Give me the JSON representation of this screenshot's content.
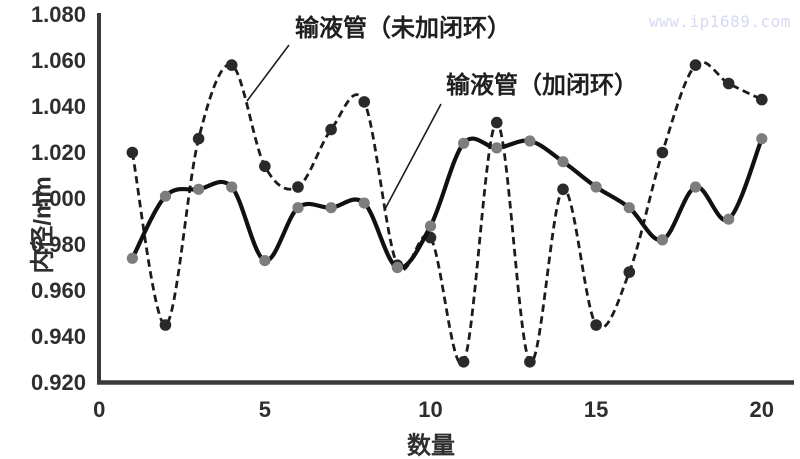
{
  "watermark": "www.ip1689.com",
  "chart_data": {
    "type": "line",
    "title": "",
    "xlabel": "数量",
    "ylabel": "内径/mm",
    "x": [
      1,
      2,
      3,
      4,
      5,
      6,
      7,
      8,
      9,
      10,
      11,
      12,
      13,
      14,
      15,
      16,
      17,
      18,
      19,
      20
    ],
    "xticks": [
      0,
      5,
      10,
      15,
      20
    ],
    "yticks": [
      0.92,
      0.94,
      0.96,
      0.98,
      1.0,
      1.02,
      1.04,
      1.06,
      1.08
    ],
    "xlim": [
      0,
      21
    ],
    "ylim": [
      0.92,
      1.08
    ],
    "grid": false,
    "smooth": true,
    "legend_position": "inline-annotations",
    "series": [
      {
        "name": "输液管（未加闭环）",
        "line_style": "dashed",
        "line_color": "#1c1c1c",
        "marker_color": "#2a2a2a",
        "values": [
          1.02,
          0.945,
          1.026,
          1.058,
          1.014,
          1.005,
          1.03,
          1.042,
          0.971,
          0.983,
          0.929,
          1.033,
          0.929,
          1.004,
          0.945,
          0.968,
          1.02,
          1.058,
          1.05,
          1.043
        ]
      },
      {
        "name": "输液管（加闭环）",
        "line_style": "solid",
        "line_color": "#111111",
        "marker_color": "#7d7d7d",
        "values": [
          0.974,
          1.001,
          1.004,
          1.005,
          0.973,
          0.996,
          0.996,
          0.998,
          0.97,
          0.988,
          1.024,
          1.022,
          1.025,
          1.016,
          1.005,
          0.996,
          0.982,
          1.005,
          0.991,
          1.026
        ]
      }
    ],
    "axis_color": "#3a3a3a"
  }
}
